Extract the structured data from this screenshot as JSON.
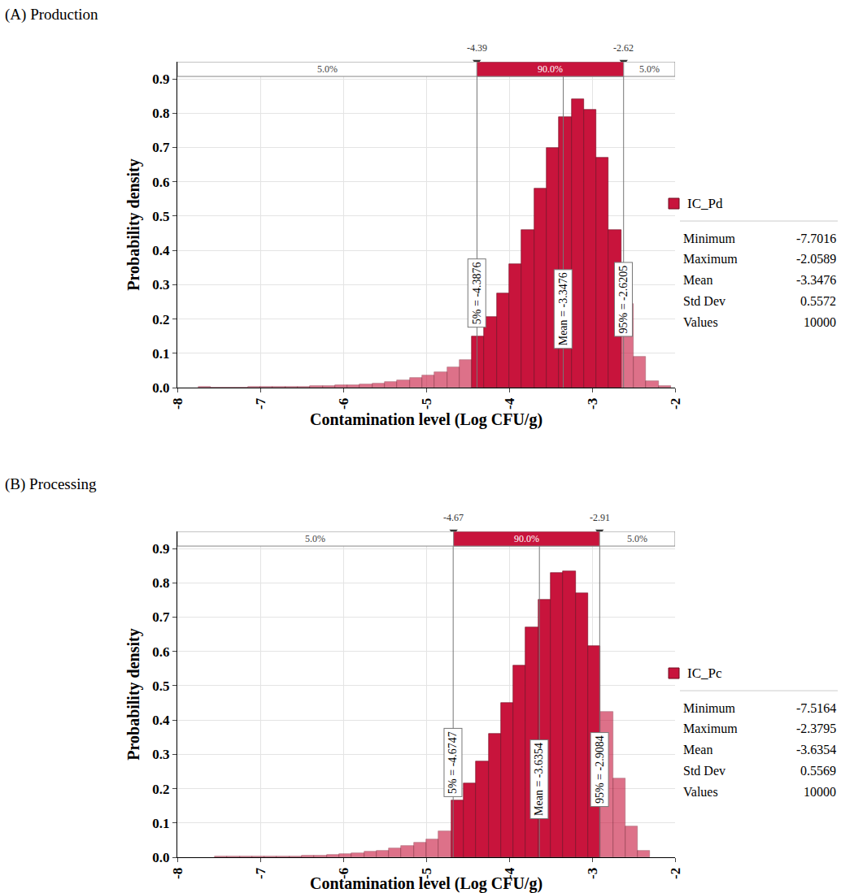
{
  "chart_data": [
    {
      "type": "histogram",
      "title": "(A) Production",
      "x_label": "Contamination level (Log CFU/g)",
      "y_label": "Probability density",
      "name": "IC_Pd",
      "color": "#c8143c",
      "bins": [
        -7.75,
        -7.6,
        -7.45,
        -7.3,
        -7.15,
        -7,
        -6.85,
        -6.7,
        -6.55,
        -6.4,
        -6.25,
        -6.1,
        -5.95,
        -5.8,
        -5.65,
        -5.5,
        -5.35,
        -5.2,
        -5.05,
        -4.9,
        -4.75,
        -4.6,
        -4.45,
        -4.3,
        -4.15,
        -4,
        -3.85,
        -3.7,
        -3.55,
        -3.4,
        -3.25,
        -3.1,
        -2.95,
        -2.8,
        -2.65,
        -2.5,
        -2.35,
        -2.2,
        -2.05
      ],
      "values": [
        0.002,
        0.001,
        0.001,
        0.001,
        0.002,
        0.002,
        0.002,
        0.003,
        0.003,
        0.004,
        0.005,
        0.006,
        0.008,
        0.01,
        0.013,
        0.017,
        0.022,
        0.028,
        0.035,
        0.045,
        0.06,
        0.08,
        0.15,
        0.205,
        0.275,
        0.36,
        0.46,
        0.58,
        0.7,
        0.79,
        0.84,
        0.81,
        0.67,
        0.46,
        0.245,
        0.09,
        0.02,
        0.005
      ],
      "xlim": [
        -8,
        -2
      ],
      "xticks": [
        -8,
        -7,
        -6,
        -5,
        -4,
        -3,
        -2
      ],
      "ylim": [
        0,
        0.95
      ],
      "yticks": [
        {
          "value": 0,
          "label": "0.0"
        },
        0.1,
        0.2,
        0.3,
        0.4,
        0.5,
        0.6,
        0.7,
        0.8,
        0.9
      ],
      "grid": true,
      "band": {
        "edges": [
          -4.39,
          -2.62
        ],
        "labels": [
          "5.0%",
          "90.0%",
          "5.0%"
        ]
      },
      "markers": [
        {
          "label": "5% = -4.3876",
          "value": -4.3876
        },
        {
          "label": "Mean = -3.3476",
          "value": -3.3476
        },
        {
          "label": "95% = -2.6205",
          "value": -2.6205
        }
      ],
      "stats": [
        {
          "label": "Minimum",
          "value": -7.7016
        },
        {
          "label": "Maximum",
          "value": -2.0589
        },
        {
          "label": "Mean",
          "value": -3.3476
        },
        {
          "label": "Std Dev",
          "value": 0.5572
        },
        {
          "label": "Values",
          "value": 10000
        }
      ]
    },
    {
      "type": "histogram",
      "title": "(B) Processing",
      "x_label": "Contamination level (Log CFU/g)",
      "y_label": "Probability density",
      "name": "IC_Pc",
      "color": "#c8143c",
      "bins": [
        -7.55,
        -7.4,
        -7.25,
        -7.1,
        -6.95,
        -6.8,
        -6.65,
        -6.5,
        -6.35,
        -6.2,
        -6.05,
        -5.9,
        -5.75,
        -5.6,
        -5.45,
        -5.3,
        -5.15,
        -5,
        -4.85,
        -4.7,
        -4.55,
        -4.4,
        -4.25,
        -4.1,
        -3.95,
        -3.8,
        -3.65,
        -3.5,
        -3.35,
        -3.2,
        -3.05,
        -2.9,
        -2.75,
        -2.6,
        -2.45,
        -2.3
      ],
      "values": [
        0.002,
        0.002,
        0.002,
        0.002,
        0.002,
        0.003,
        0.003,
        0.004,
        0.005,
        0.007,
        0.009,
        0.012,
        0.016,
        0.02,
        0.026,
        0.033,
        0.042,
        0.053,
        0.075,
        0.165,
        0.215,
        0.28,
        0.36,
        0.45,
        0.56,
        0.67,
        0.75,
        0.83,
        0.835,
        0.77,
        0.615,
        0.425,
        0.23,
        0.09,
        0.02
      ],
      "xlim": [
        -8,
        -2
      ],
      "xticks": [
        -8,
        -7,
        -6,
        -5,
        -4,
        -3,
        -2
      ],
      "ylim": [
        0,
        0.95
      ],
      "yticks": [
        {
          "value": 0,
          "label": "0.0"
        },
        0.1,
        0.2,
        0.3,
        0.4,
        0.5,
        0.6,
        0.7,
        0.8,
        0.9
      ],
      "grid": true,
      "band": {
        "edges": [
          -4.67,
          -2.91
        ],
        "labels": [
          "5.0%",
          "90.0%",
          "5.0%"
        ]
      },
      "markers": [
        {
          "label": "5% = -4.6747",
          "value": -4.6747
        },
        {
          "label": "Mean = -3.6354",
          "value": -3.6354
        },
        {
          "label": "95% = -2.9084",
          "value": -2.9084
        }
      ],
      "stats": [
        {
          "label": "Minimum",
          "value": -7.5164
        },
        {
          "label": "Maximum",
          "value": -2.3795
        },
        {
          "label": "Mean",
          "value": -3.6354
        },
        {
          "label": "Std Dev",
          "value": 0.5569
        },
        {
          "label": "Values",
          "value": 10000
        }
      ]
    }
  ]
}
